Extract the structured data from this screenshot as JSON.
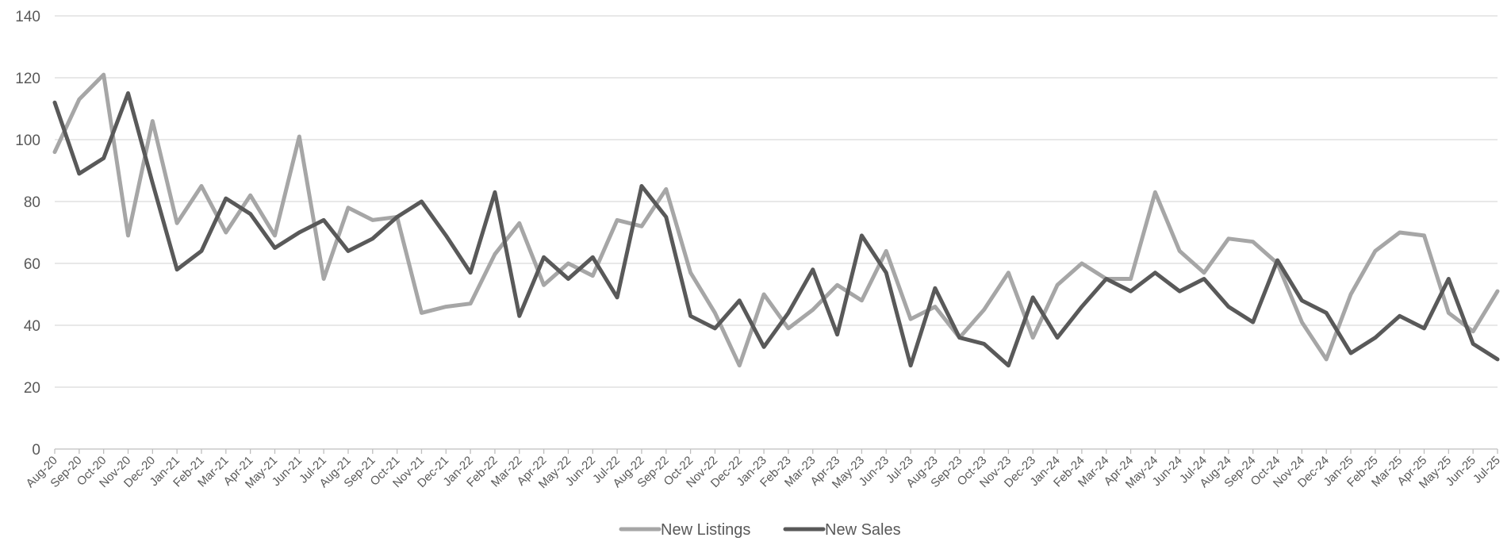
{
  "chart_data": {
    "type": "line",
    "title": "",
    "xlabel": "",
    "ylabel": "",
    "ylim": [
      0,
      140
    ],
    "yticks": [
      0,
      20,
      40,
      60,
      80,
      100,
      120,
      140
    ],
    "grid": true,
    "legend_position": "bottom-center",
    "categories": [
      "Aug-20",
      "Sep-20",
      "Oct-20",
      "Nov-20",
      "Dec-20",
      "Jan-21",
      "Feb-21",
      "Mar-21",
      "Apr-21",
      "May-21",
      "Jun-21",
      "Jul-21",
      "Aug-21",
      "Sep-21",
      "Oct-21",
      "Nov-21",
      "Dec-21",
      "Jan-22",
      "Feb-22",
      "Mar-22",
      "Apr-22",
      "May-22",
      "Jun-22",
      "Jul-22",
      "Aug-22",
      "Sep-22",
      "Oct-22",
      "Nov-22",
      "Dec-22",
      "Jan-23",
      "Feb-23",
      "Mar-23",
      "Apr-23",
      "May-23",
      "Jun-23",
      "Jul-23",
      "Aug-23",
      "Sep-23",
      "Oct-23",
      "Nov-23",
      "Dec-23",
      "Jan-24",
      "Feb-24",
      "Mar-24",
      "Apr-24",
      "May-24",
      "Jun-24",
      "Jul-24",
      "Aug-24",
      "Sep-24",
      "Oct-24",
      "Nov-24",
      "Dec-24",
      "Jan-25",
      "Feb-25",
      "Mar-25",
      "Apr-25",
      "May-25",
      "Jun-25",
      "Jul-25"
    ],
    "series": [
      {
        "name": "New Listings",
        "color": "#a6a6a6",
        "values": [
          96,
          113,
          121,
          69,
          106,
          73,
          85,
          70,
          82,
          69,
          101,
          55,
          78,
          74,
          75,
          44,
          46,
          47,
          63,
          73,
          53,
          60,
          56,
          74,
          72,
          84,
          57,
          44,
          27,
          50,
          39,
          45,
          53,
          48,
          64,
          42,
          46,
          36,
          45,
          57,
          36,
          53,
          60,
          55,
          55,
          83,
          64,
          57,
          68,
          67,
          60,
          41,
          29,
          50,
          64,
          70,
          69,
          44,
          38,
          51
        ]
      },
      {
        "name": "New Sales",
        "color": "#595959",
        "values": [
          112,
          89,
          94,
          115,
          86,
          58,
          64,
          81,
          76,
          65,
          70,
          74,
          64,
          68,
          75,
          80,
          69,
          57,
          83,
          43,
          62,
          55,
          62,
          49,
          85,
          75,
          43,
          39,
          48,
          33,
          44,
          58,
          37,
          69,
          57,
          27,
          52,
          36,
          34,
          27,
          49,
          36,
          46,
          55,
          51,
          57,
          51,
          55,
          46,
          41,
          61,
          48,
          44,
          31,
          36,
          43,
          39,
          55,
          34,
          29
        ]
      }
    ]
  }
}
